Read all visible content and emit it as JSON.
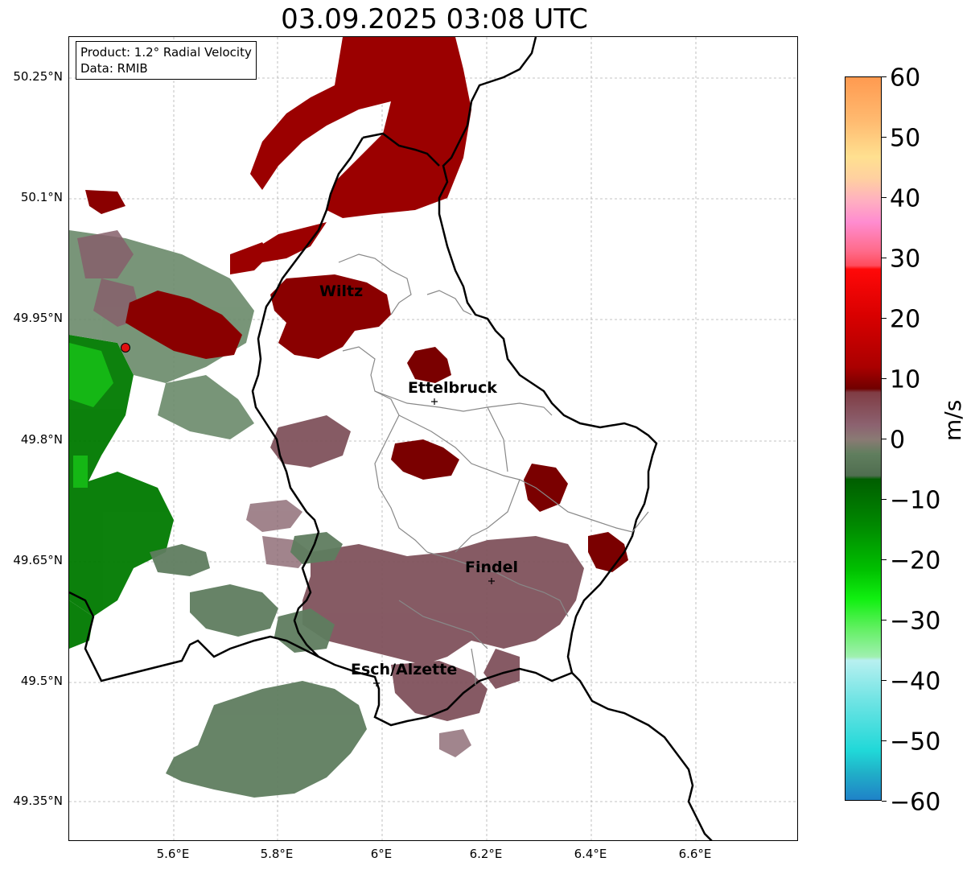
{
  "title": "03.09.2025 03:08 UTC",
  "info": {
    "product": "Product: 1.2° Radial Velocity",
    "data": "Data: RMIB"
  },
  "axes": {
    "lat_ticks": [
      "50.25°N",
      "50.1°N",
      "49.95°N",
      "49.8°N",
      "49.65°N",
      "49.5°N",
      "49.35°N"
    ],
    "lon_ticks": [
      "5.6°E",
      "5.8°E",
      "6°E",
      "6.2°E",
      "6.4°E",
      "6.6°E"
    ]
  },
  "colorbar": {
    "label": "m/s",
    "ticks": [
      "60",
      "50",
      "40",
      "30",
      "20",
      "10",
      "0",
      "−10",
      "−20",
      "−30",
      "−40",
      "−50",
      "−60"
    ],
    "range": [
      -60,
      60
    ]
  },
  "cities": [
    {
      "name": "Wiltz"
    },
    {
      "name": "Ettelbruck"
    },
    {
      "name": "Findel"
    },
    {
      "name": "Esch/Alzette"
    }
  ],
  "colors": {
    "dark_red": "#9b0000",
    "maroon": "#7a0000",
    "mauve": "#8a5c66",
    "gray_green": "#5f7d5f",
    "green": "#007a00",
    "bright_green": "#00d000",
    "radar_marker": "#e01010"
  }
}
